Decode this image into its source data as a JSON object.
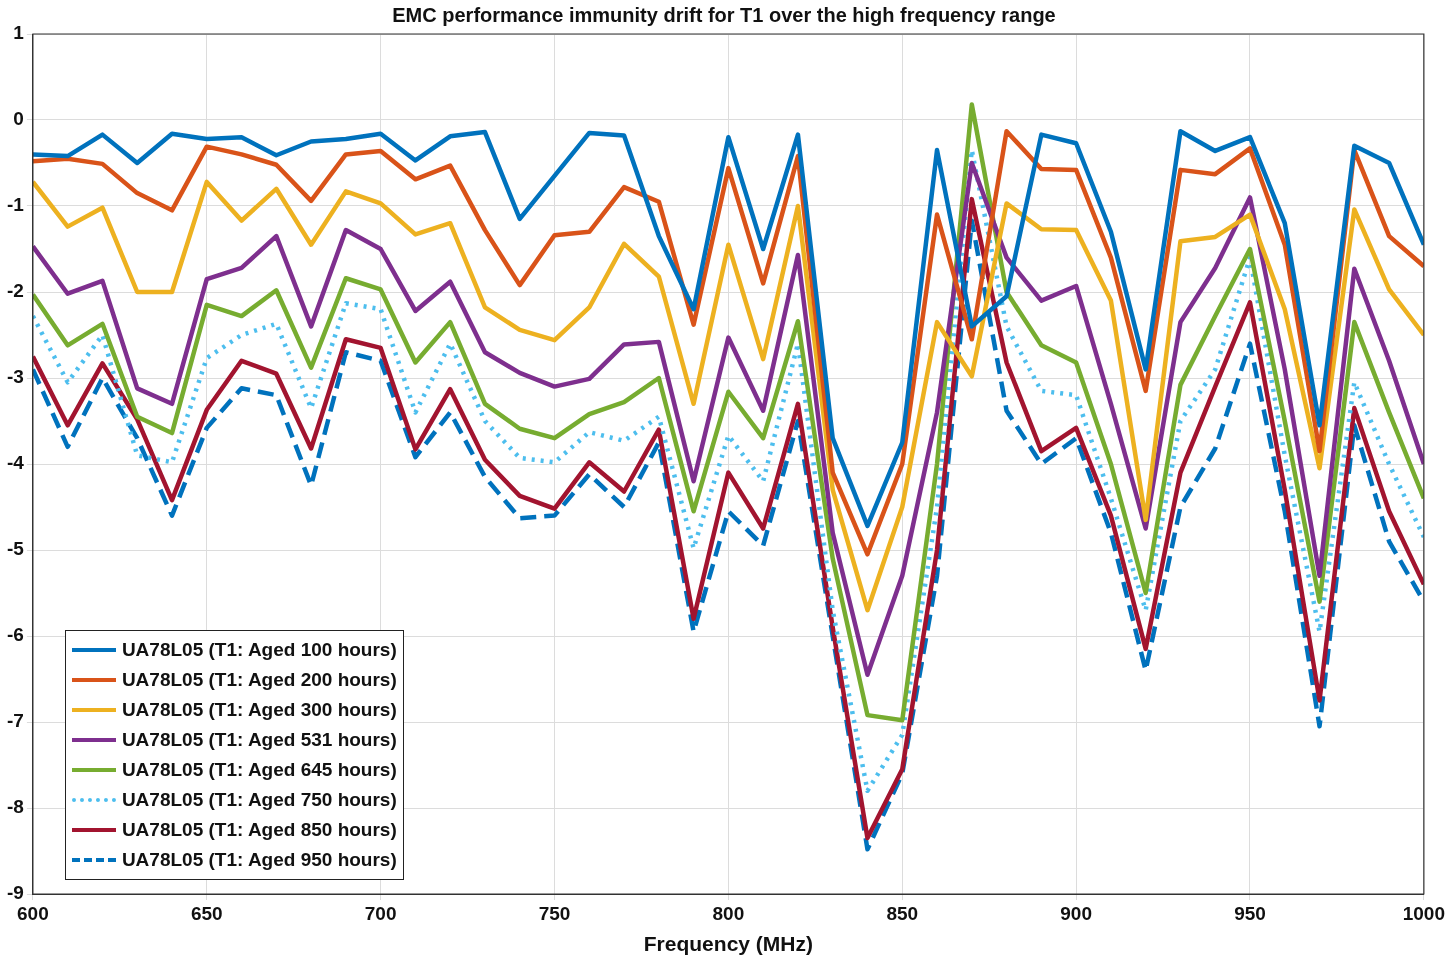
{
  "chart_data": {
    "type": "line",
    "title": "EMC performance immunity drift for T1 over the high frequency range",
    "xlabel": "Frequency (MHz)",
    "x": [
      600,
      610,
      620,
      630,
      640,
      650,
      660,
      670,
      680,
      690,
      700,
      710,
      720,
      730,
      740,
      750,
      760,
      770,
      780,
      790,
      800,
      810,
      820,
      830,
      840,
      850,
      860,
      870,
      880,
      890,
      900,
      910,
      920,
      930,
      940,
      950,
      960,
      970,
      980,
      990,
      1000
    ],
    "xlim": [
      600,
      1000
    ],
    "xticks": [
      600,
      650,
      700,
      750,
      800,
      850,
      900,
      950,
      1000
    ],
    "ylim": [
      -9,
      1
    ],
    "yticks": [
      -9,
      -8,
      -7,
      -6,
      -5,
      -4,
      -3,
      -2,
      -1,
      0,
      1
    ],
    "grid": true,
    "legend": "bottom left",
    "marker": "none",
    "series": [
      {
        "name": "UA78L05 (T1: Aged 100 hours)",
        "color": "#0072bd",
        "line_style": "solid",
        "values": [
          -0.4,
          -0.42,
          -0.17,
          -0.5,
          -0.16,
          -0.22,
          -0.2,
          -0.41,
          -0.25,
          -0.22,
          -0.16,
          -0.47,
          -0.19,
          -0.14,
          -1.15,
          -0.65,
          -0.15,
          -0.18,
          -1.35,
          -2.2,
          -0.2,
          -1.5,
          -0.17,
          -3.7,
          -4.72,
          -3.75,
          -0.35,
          -2.4,
          -2.05,
          -0.17,
          -0.27,
          -1.3,
          -2.9,
          -0.13,
          -0.36,
          -0.2,
          -1.2,
          -3.55,
          -0.3,
          -0.5,
          -1.45
        ]
      },
      {
        "name": "UA78L05 (T1: Aged 200 hours)",
        "color": "#d95319",
        "line_style": "solid",
        "values": [
          -0.48,
          -0.45,
          -0.51,
          -0.85,
          -1.05,
          -0.31,
          -0.4,
          -0.52,
          -0.94,
          -0.4,
          -0.36,
          -0.69,
          -0.53,
          -1.28,
          -1.92,
          -1.34,
          -1.3,
          -0.78,
          -0.95,
          -2.38,
          -0.56,
          -1.9,
          -0.42,
          -4.1,
          -5.05,
          -4.0,
          -1.1,
          -2.55,
          -0.13,
          -0.57,
          -0.58,
          -1.6,
          -3.15,
          -0.58,
          -0.63,
          -0.33,
          -1.45,
          -3.85,
          -0.35,
          -1.35,
          -1.7
        ]
      },
      {
        "name": "UA78L05 (T1: Aged 300 hours)",
        "color": "#edb120",
        "line_style": "solid",
        "values": [
          -0.72,
          -1.24,
          -1.02,
          -2.0,
          -2.0,
          -0.72,
          -1.17,
          -0.8,
          -1.45,
          -0.83,
          -0.97,
          -1.33,
          -1.2,
          -2.18,
          -2.44,
          -2.56,
          -2.18,
          -1.44,
          -1.82,
          -3.3,
          -1.45,
          -2.78,
          -1.0,
          -4.3,
          -5.7,
          -4.5,
          -2.35,
          -2.98,
          -0.97,
          -1.27,
          -1.28,
          -2.1,
          -4.65,
          -1.41,
          -1.36,
          -1.1,
          -2.2,
          -4.05,
          -1.04,
          -1.97,
          -2.5
        ]
      },
      {
        "name": "UA78L05 (T1: Aged 531 hours)",
        "color": "#7e2f8e",
        "line_style": "solid",
        "values": [
          -1.47,
          -2.02,
          -1.87,
          -3.12,
          -3.3,
          -1.85,
          -1.72,
          -1.35,
          -2.4,
          -1.28,
          -1.5,
          -2.22,
          -1.88,
          -2.7,
          -2.94,
          -3.1,
          -3.01,
          -2.61,
          -2.58,
          -4.2,
          -2.53,
          -3.38,
          -1.57,
          -4.8,
          -6.45,
          -5.3,
          -3.4,
          -0.5,
          -1.6,
          -2.1,
          -1.93,
          -3.3,
          -4.75,
          -2.35,
          -1.72,
          -0.9,
          -2.9,
          -5.3,
          -1.73,
          -2.8,
          -4.0
        ]
      },
      {
        "name": "UA78L05 (T1: Aged 645 hours)",
        "color": "#77ac30",
        "line_style": "solid",
        "values": [
          -2.03,
          -2.62,
          -2.37,
          -3.45,
          -3.64,
          -2.15,
          -2.28,
          -1.98,
          -2.88,
          -1.84,
          -1.97,
          -2.82,
          -2.35,
          -3.3,
          -3.59,
          -3.7,
          -3.42,
          -3.28,
          -3.0,
          -4.55,
          -3.16,
          -3.7,
          -2.34,
          -5.1,
          -6.92,
          -6.98,
          -4.0,
          0.18,
          -2.0,
          -2.62,
          -2.82,
          -4.0,
          -5.5,
          -3.08,
          -2.28,
          -1.5,
          -3.5,
          -5.6,
          -2.35,
          -3.4,
          -4.4
        ]
      },
      {
        "name": "UA78L05 (T1: Aged 750 hours)",
        "color": "#4dbeee",
        "line_style": "dotted",
        "values": [
          -2.28,
          -3.05,
          -2.5,
          -3.9,
          -3.98,
          -2.77,
          -2.5,
          -2.37,
          -3.35,
          -2.13,
          -2.2,
          -3.4,
          -2.6,
          -3.5,
          -3.93,
          -3.98,
          -3.63,
          -3.73,
          -3.45,
          -4.98,
          -3.67,
          -4.2,
          -2.6,
          -5.7,
          -7.8,
          -7.15,
          -4.5,
          -0.35,
          -2.4,
          -3.15,
          -3.2,
          -4.4,
          -5.7,
          -3.5,
          -2.9,
          -1.6,
          -3.9,
          -5.95,
          -3.05,
          -4.0,
          -4.85
        ]
      },
      {
        "name": "UA78L05 (T1: Aged 850 hours)",
        "color": "#a2142f",
        "line_style": "solid",
        "values": [
          -2.75,
          -3.55,
          -2.83,
          -3.48,
          -4.42,
          -3.37,
          -2.8,
          -2.95,
          -3.82,
          -2.55,
          -2.65,
          -3.83,
          -3.13,
          -3.95,
          -4.37,
          -4.52,
          -3.98,
          -4.32,
          -3.6,
          -5.8,
          -4.1,
          -4.75,
          -3.3,
          -5.9,
          -8.35,
          -7.55,
          -5.0,
          -0.92,
          -2.82,
          -3.85,
          -3.58,
          -4.6,
          -6.15,
          -4.1,
          -3.1,
          -2.12,
          -4.3,
          -6.75,
          -3.35,
          -4.55,
          -5.4
        ]
      },
      {
        "name": "UA78L05 (T1: Aged 950 hours)",
        "color": "#0072bd",
        "line_style": "dashed",
        "values": [
          -2.9,
          -3.8,
          -3.0,
          -3.7,
          -4.6,
          -3.58,
          -3.12,
          -3.2,
          -4.25,
          -2.7,
          -2.8,
          -3.92,
          -3.4,
          -4.15,
          -4.63,
          -4.6,
          -4.12,
          -4.5,
          -3.75,
          -5.95,
          -4.55,
          -4.95,
          -3.5,
          -6.0,
          -8.48,
          -7.6,
          -5.3,
          -1.17,
          -3.38,
          -4.0,
          -3.7,
          -4.8,
          -6.4,
          -4.5,
          -3.82,
          -2.6,
          -4.55,
          -7.05,
          -3.55,
          -4.9,
          -5.6
        ]
      }
    ]
  }
}
